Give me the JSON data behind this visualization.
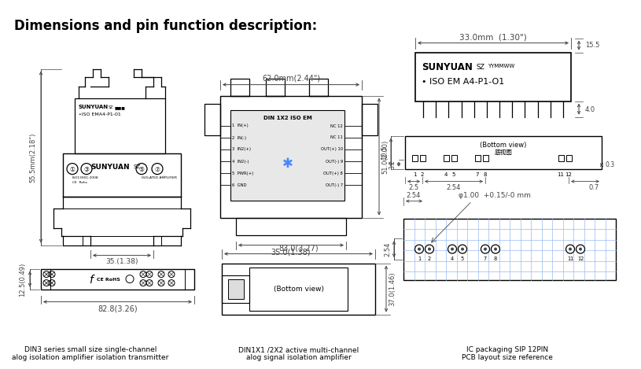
{
  "title": "Dimensions and pin function description:",
  "bg_color": "#ffffff",
  "lc": "#000000",
  "dc": "#444444",
  "tc": "#000000",
  "fig_width": 7.95,
  "fig_height": 4.44,
  "footer_left": "DIN3 series small size single-channel\nalog isolation amplifier isolation transmitter",
  "footer_mid": "DIN1X1 /2X2 active multi-channel\nalog signal isolation amplifier",
  "footer_right": "IC packaging SIP 12PIN\nPCB layout size reference",
  "ic_model": "• ISO EM A4-P1-O1",
  "dim_33": "33.0mm  (1.30\")",
  "dim_62": "62.0mm(2.44\")",
  "dim_35_top": "35.0(1.38)",
  "dim_35_bot": "35.(1.38)",
  "dim_55": "55.5mm(2.18\")",
  "dim_51": "51.0(2.00)",
  "dim_83": "83.0(3.27)",
  "dim_37": "37.0(1.46)",
  "dim_82": "82.8(3.26)",
  "dim_12": "12.5(0.49)",
  "dim_15": "15.5",
  "dim_4": "4.0",
  "dim_10": "10.5",
  "dim_32": "3.2",
  "dim_03": "0.3",
  "dim_25a": "2.5",
  "dim_254": "2.54",
  "dim_07": "0.7",
  "dim_254b": "2.54",
  "dim_phi": "φ1.00  +0.15/-0 mm",
  "din_label": "DIN 1X2 ISO EM",
  "pin_labels_left": [
    "1  IN(+)",
    "2  IN(-)",
    "3  IN2(+)",
    "4  IN2(-)",
    "5  PWR(+)",
    "6  GND"
  ],
  "pin_labels_right": [
    "NC 12",
    "NC 11",
    "OUT(+) 10",
    "OUT(-) 9",
    "OUT(+) 8",
    "OUT(-) 7"
  ],
  "pin_numbers_sip": [
    "1",
    "2",
    "4",
    "5",
    "7",
    "8",
    "11",
    "12"
  ]
}
